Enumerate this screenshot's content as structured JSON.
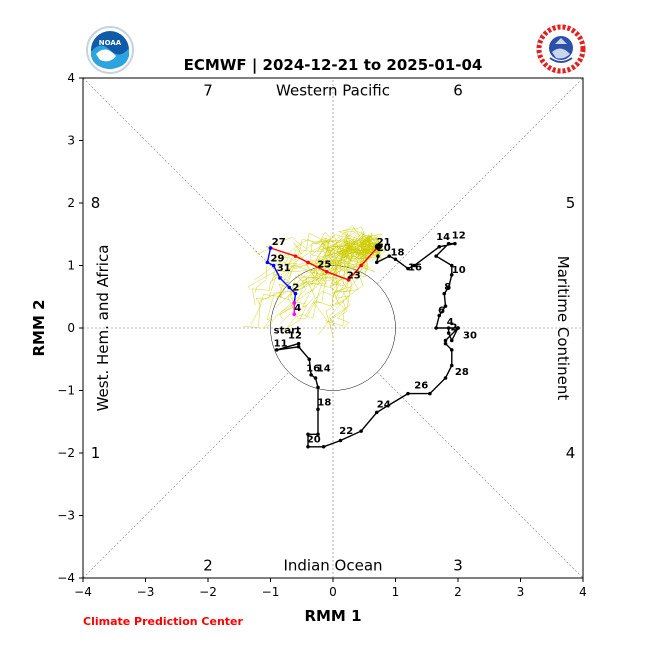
{
  "chart_data": {
    "type": "line",
    "title": "ECMWF | 2024-12-21 to 2025-01-04",
    "xlabel": "RMM 1",
    "ylabel": "RMM 2",
    "xlim": [
      -4,
      4
    ],
    "ylim": [
      -4,
      4
    ],
    "xticks": [
      "−4",
      "−3",
      "−2",
      "−1",
      "0",
      "1",
      "2",
      "3",
      "4"
    ],
    "yticks": [
      "−4",
      "−3",
      "−2",
      "−1",
      "0",
      "1",
      "2",
      "3",
      "4"
    ],
    "grid": false,
    "phase_numbers": [
      {
        "label": "7",
        "x": -2,
        "y": 3.8
      },
      {
        "label": "6",
        "x": 2,
        "y": 3.8
      },
      {
        "label": "8",
        "x": -3.8,
        "y": 2
      },
      {
        "label": "5",
        "x": 3.8,
        "y": 2
      },
      {
        "label": "1",
        "x": -3.8,
        "y": -2
      },
      {
        "label": "4",
        "x": 3.8,
        "y": -2
      },
      {
        "label": "2",
        "x": -2,
        "y": -3.8
      },
      {
        "label": "3",
        "x": 2,
        "y": -3.8
      }
    ],
    "region_labels": {
      "top": "Western Pacific",
      "bottom": "Indian Ocean",
      "left": "West. Hem. and Africa",
      "right": "Maritime Continent"
    },
    "series": [
      {
        "color": "#000000",
        "x": [
          -0.55,
          -0.9,
          -0.55,
          -0.38,
          -0.35,
          -0.28,
          -0.24,
          -0.24,
          -0.24,
          -0.4,
          -0.4,
          -0.15,
          0.12,
          0.45,
          0.7,
          1.2,
          1.55,
          1.8,
          1.9,
          1.9,
          1.8,
          1.8,
          2.0,
          1.9,
          1.85,
          1.85,
          2.0,
          1.65,
          1.7,
          1.8,
          1.78,
          1.85,
          1.85,
          1.9,
          1.9,
          1.65,
          1.85,
          1.95,
          1.7,
          1.3,
          1.2,
          1.0,
          0.9,
          0.7,
          0.72
        ],
        "y": [
          -0.25,
          -0.35,
          -0.3,
          -0.5,
          -0.75,
          -0.8,
          -0.95,
          -1.3,
          -1.7,
          -1.7,
          -1.9,
          -1.9,
          -1.8,
          -1.65,
          -1.35,
          -1.05,
          -1.05,
          -0.8,
          -0.6,
          -0.35,
          -0.25,
          -0.2,
          0.0,
          -0.2,
          -0.08,
          0.0,
          0.0,
          0.0,
          0.2,
          0.35,
          0.55,
          0.65,
          0.65,
          0.85,
          1.0,
          1.15,
          1.35,
          1.35,
          1.3,
          1.0,
          0.95,
          1.1,
          1.15,
          1.05,
          1.15
        ],
        "labels": [
          {
            "text": "start",
            "x": -0.95,
            "y": -0.12
          },
          {
            "text": "11",
            "x": -0.95,
            "y": -0.33
          },
          {
            "text": "12",
            "x": -0.72,
            "y": -0.2
          },
          {
            "text": "14",
            "x": -0.26,
            "y": -0.73
          },
          {
            "text": "16",
            "x": -0.43,
            "y": -0.73
          },
          {
            "text": "18",
            "x": -0.25,
            "y": -1.27
          },
          {
            "text": "20",
            "x": -0.42,
            "y": -1.86
          },
          {
            "text": "22",
            "x": 0.1,
            "y": -1.73
          },
          {
            "text": "24",
            "x": 0.7,
            "y": -1.3
          },
          {
            "text": "26",
            "x": 1.3,
            "y": -1.0
          },
          {
            "text": "28",
            "x": 1.95,
            "y": -0.78
          },
          {
            "text": "30",
            "x": 2.08,
            "y": -0.2
          },
          {
            "text": "2",
            "x": 1.88,
            "y": -0.07
          },
          {
            "text": "4",
            "x": 1.82,
            "y": 0.02
          },
          {
            "text": "6",
            "x": 1.68,
            "y": 0.2
          },
          {
            "text": "8",
            "x": 1.78,
            "y": 0.58
          },
          {
            "text": "10",
            "x": 1.9,
            "y": 0.85
          },
          {
            "text": "12",
            "x": 1.9,
            "y": 1.4
          },
          {
            "text": "14",
            "x": 1.65,
            "y": 1.38
          },
          {
            "text": "16",
            "x": 1.2,
            "y": 0.89
          },
          {
            "text": "18",
            "x": 0.92,
            "y": 1.13
          },
          {
            "text": "20",
            "x": 0.7,
            "y": 1.2
          },
          {
            "text": "21",
            "x": 0.7,
            "y": 1.3
          }
        ]
      },
      {
        "color": "#ff0000",
        "x": [
          0.72,
          0.45,
          0.25,
          -0.1,
          -0.4,
          -0.6,
          -1.0
        ],
        "y": [
          1.3,
          1.0,
          0.77,
          0.9,
          1.05,
          1.15,
          1.28
        ],
        "labels": [
          {
            "text": "23",
            "x": 0.22,
            "y": 0.76
          },
          {
            "text": "25",
            "x": -0.25,
            "y": 0.94
          },
          {
            "text": "27",
            "x": -0.98,
            "y": 1.3
          }
        ]
      },
      {
        "color": "#0000ff",
        "x": [
          -1.0,
          -1.05,
          -0.95,
          -0.85,
          -0.7,
          -0.6,
          -0.62
        ],
        "y": [
          1.28,
          1.05,
          1.0,
          0.8,
          0.65,
          0.55,
          0.4
        ],
        "labels": [
          {
            "text": "29",
            "x": -1.0,
            "y": 1.03
          },
          {
            "text": "31",
            "x": -0.9,
            "y": 0.88
          },
          {
            "text": "2",
            "x": -0.65,
            "y": 0.57
          }
        ]
      },
      {
        "color": "#ff00ff",
        "x": [
          -0.62,
          -0.62
        ],
        "y": [
          0.4,
          0.22
        ],
        "labels": [
          {
            "text": "4",
            "x": -0.62,
            "y": 0.24
          }
        ]
      }
    ],
    "ensemble_color": "#cccc00",
    "ensemble_seed": 7
  },
  "footer": {
    "credit": "Climate Prediction Center"
  },
  "logos": {
    "left_text": "NOAA",
    "right_text": "NATIONAL WEATHER SERVICE"
  }
}
